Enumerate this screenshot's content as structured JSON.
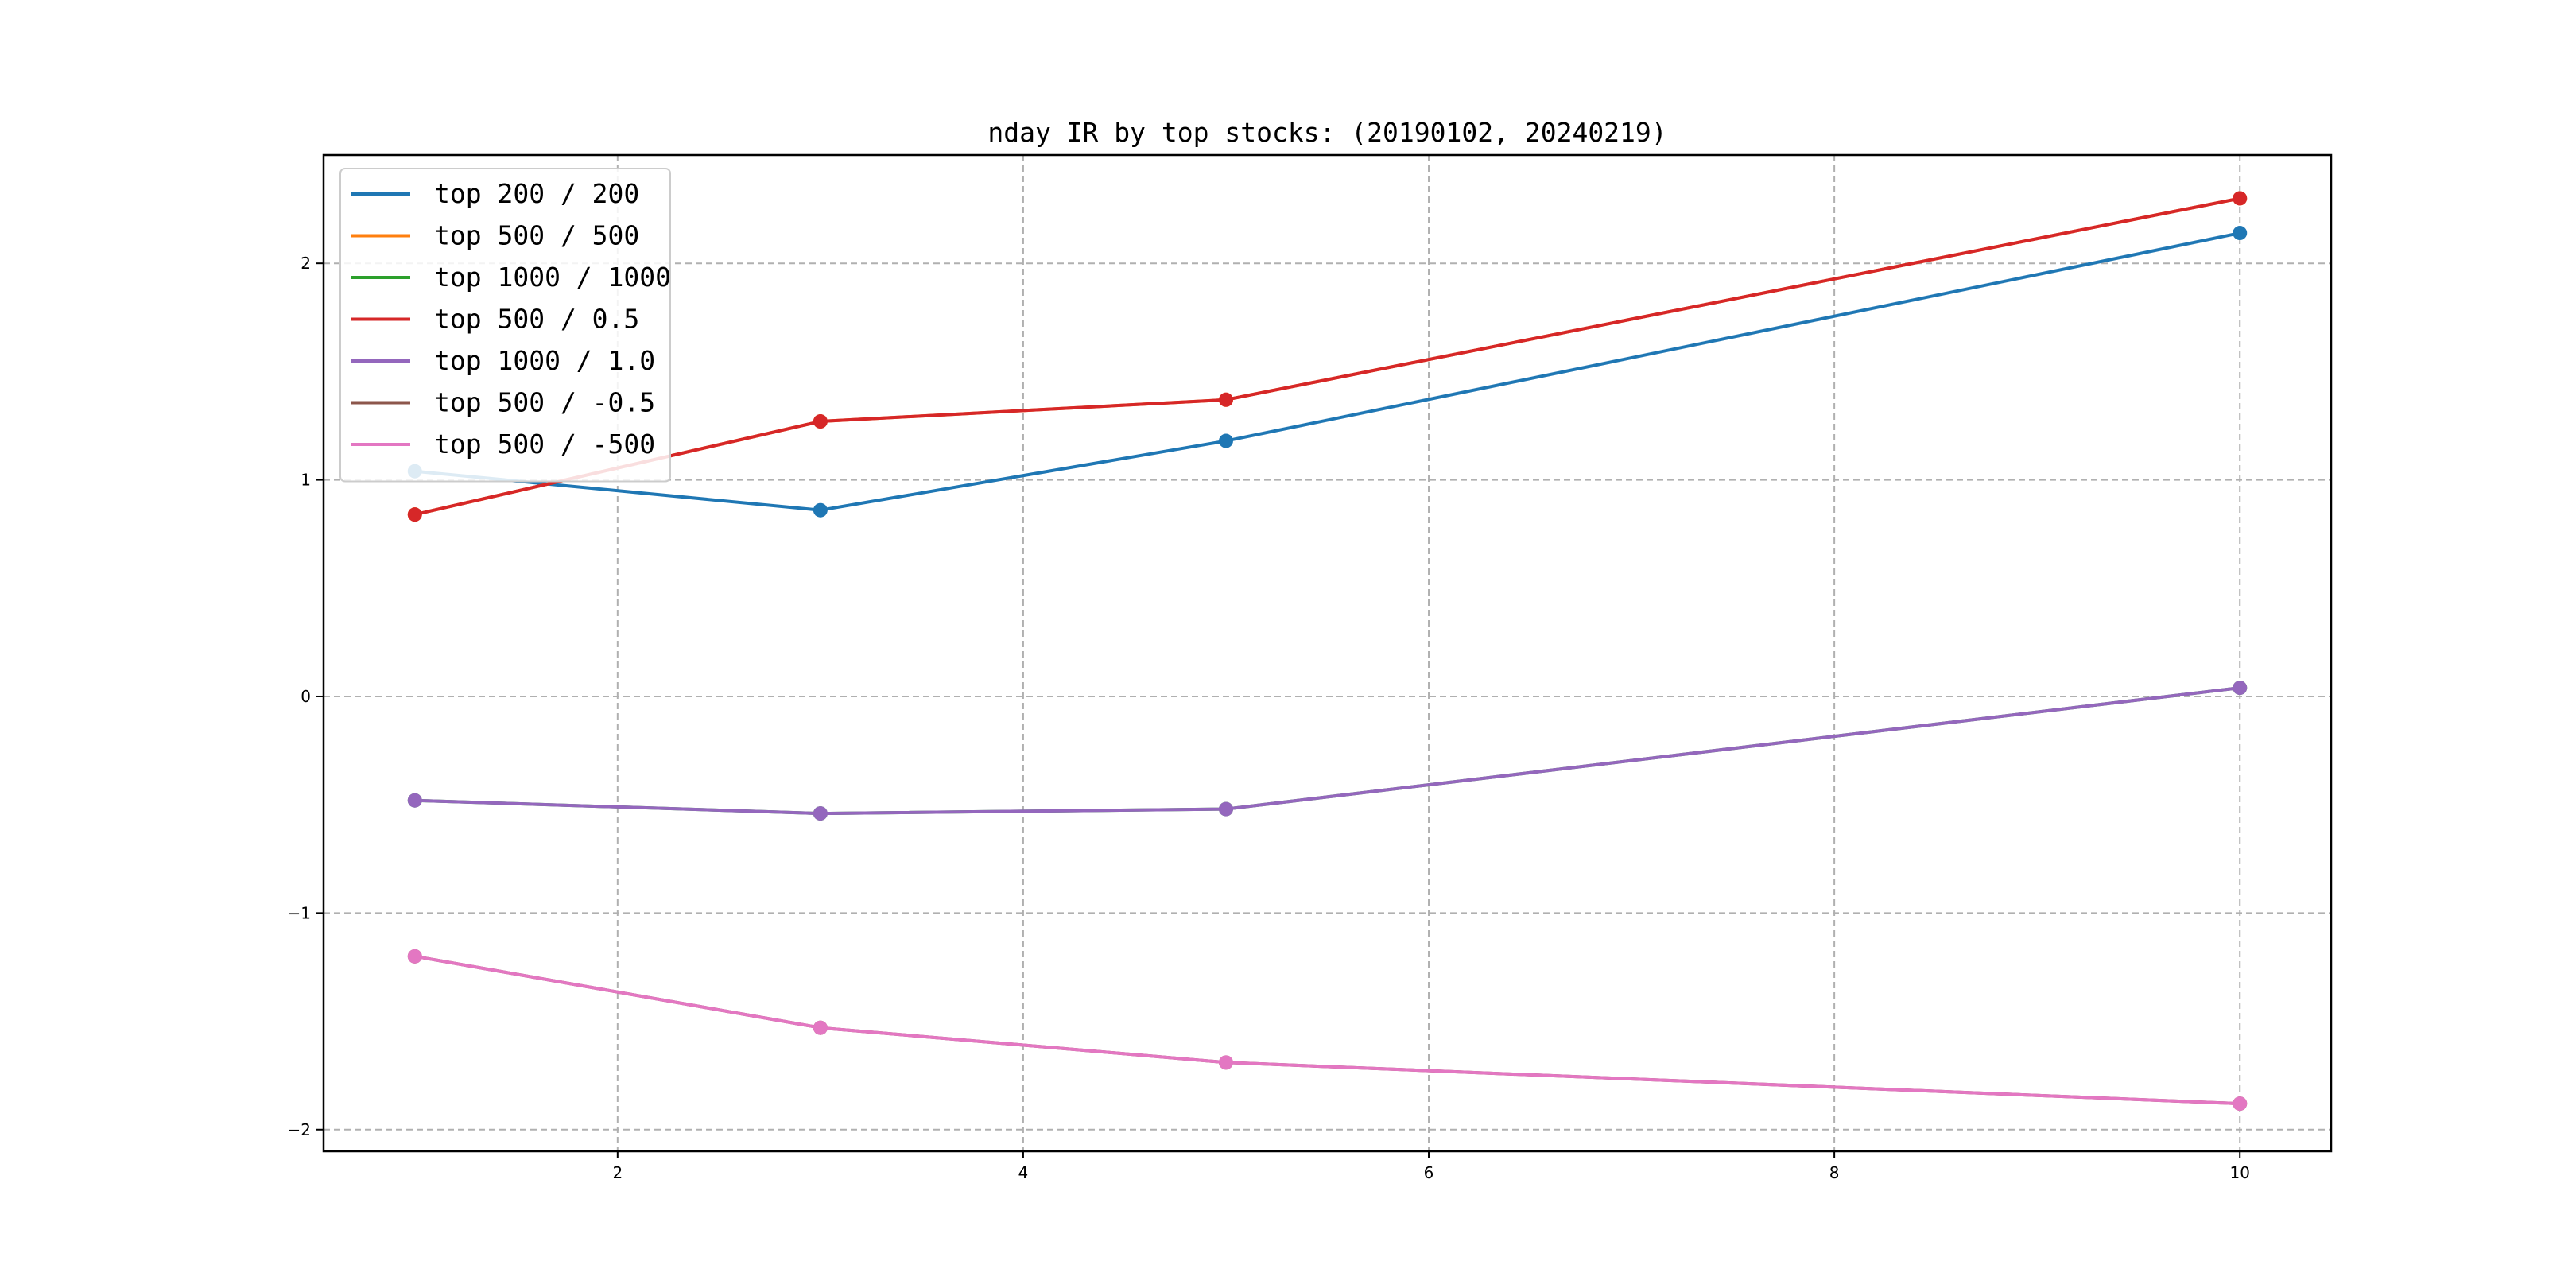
{
  "chart_data": {
    "type": "line",
    "title": "nday IR by top stocks: (20190102, 20240219)",
    "xlabel": "",
    "ylabel": "",
    "x": [
      1,
      3,
      5,
      10
    ],
    "xlim": [
      0.55,
      10.45
    ],
    "ylim": [
      -2.1,
      2.5
    ],
    "xticks": [
      2,
      4,
      6,
      8,
      10
    ],
    "yticks": [
      -2,
      -1,
      0,
      1,
      2
    ],
    "xtick_labels": [
      "2",
      "4",
      "6",
      "8",
      "10"
    ],
    "ytick_labels": [
      "−2",
      "−1",
      "0",
      "1",
      "2"
    ],
    "grid": true,
    "legend_position": "top-left",
    "markers": "circle",
    "series": [
      {
        "name": "top 200 / 200",
        "color": "#1f77b4",
        "values": [
          1.04,
          0.86,
          1.18,
          2.14
        ]
      },
      {
        "name": "top 500 / 500",
        "color": "#ff7f0e",
        "values": [
          0.84,
          1.27,
          1.37,
          2.3
        ]
      },
      {
        "name": "top 1000 / 1000",
        "color": "#2ca02c",
        "values": [
          -0.48,
          -0.54,
          -0.52,
          0.04
        ]
      },
      {
        "name": "top 500 / 0.5",
        "color": "#d62728",
        "values": [
          0.84,
          1.27,
          1.37,
          2.3
        ]
      },
      {
        "name": "top 1000 / 1.0",
        "color": "#9467bd",
        "values": [
          -0.48,
          -0.54,
          -0.52,
          0.04
        ]
      },
      {
        "name": "top 500 / -0.5",
        "color": "#8c564b",
        "values": [
          -1.2,
          -1.53,
          -1.69,
          -1.88
        ]
      },
      {
        "name": "top 500 / -500",
        "color": "#e377c2",
        "values": [
          -1.2,
          -1.53,
          -1.69,
          -1.88
        ]
      }
    ]
  }
}
